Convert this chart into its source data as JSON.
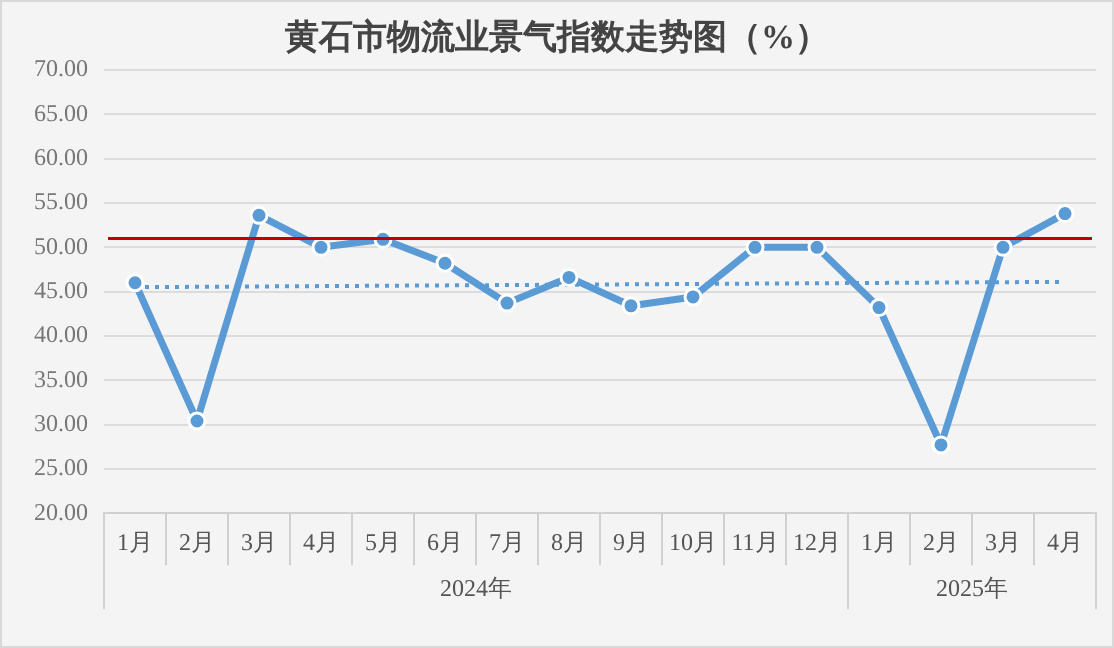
{
  "chart_data": {
    "type": "line",
    "title": "黄石市物流业景气指数走势图（%）",
    "categories": [
      "1月",
      "2月",
      "3月",
      "4月",
      "5月",
      "6月",
      "7月",
      "8月",
      "9月",
      "10月",
      "11月",
      "12月",
      "1月",
      "2月",
      "3月",
      "4月"
    ],
    "series": [
      {
        "color": "#5b9bd5",
        "marker": "circle",
        "line_style": "solid",
        "values": [
          46.0,
          30.4,
          53.6,
          50.0,
          50.9,
          48.2,
          43.7,
          46.6,
          43.4,
          44.4,
          50.0,
          50.0,
          43.2,
          27.7,
          50.0,
          53.8
        ]
      },
      {
        "color": "#5b9bd5",
        "marker": "none",
        "line_style": "dotted",
        "values": [
          45.5,
          null,
          null,
          null,
          null,
          null,
          null,
          null,
          null,
          null,
          null,
          null,
          null,
          null,
          null,
          46.1
        ]
      }
    ],
    "annotations": [
      "2024年",
      "2025年"
    ],
    "ylim": [
      20,
      70
    ],
    "yticks": [
      {
        "value": 20,
        "label": "20.00"
      },
      {
        "value": 25,
        "label": "25.00"
      },
      {
        "value": 30,
        "label": "30.00"
      },
      {
        "value": 35,
        "label": "35.00"
      },
      {
        "value": 40,
        "label": "40.00"
      },
      {
        "value": 45,
        "label": "45.00"
      },
      {
        "value": 50,
        "label": "50.00"
      },
      {
        "value": 55,
        "label": "55.00"
      },
      {
        "value": 60,
        "label": "60.00"
      },
      {
        "value": 65,
        "label": "65.00"
      },
      {
        "value": 70,
        "label": "70.00"
      }
    ],
    "ref_lines": [
      {
        "axis": "y",
        "value": 51.0,
        "color": "#c00000",
        "line_style": "solid"
      }
    ],
    "grid": "y",
    "legend": false
  }
}
